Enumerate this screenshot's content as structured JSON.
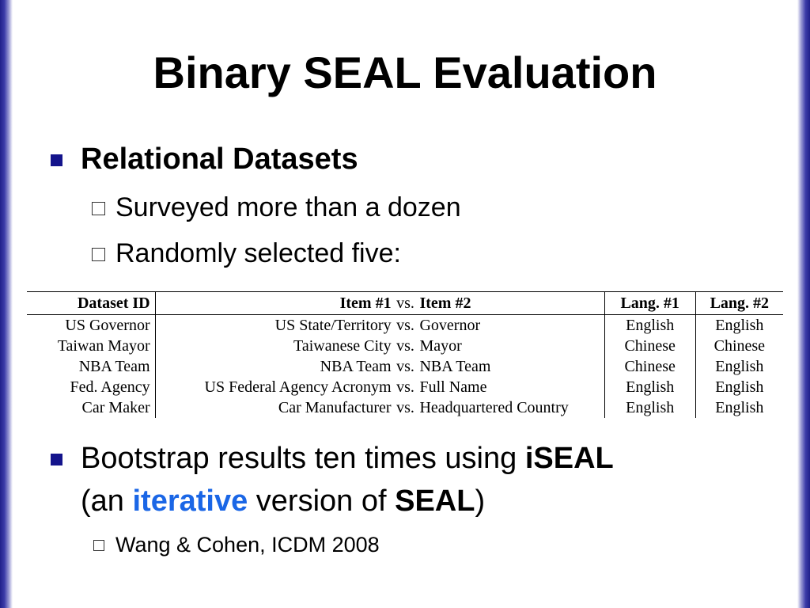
{
  "title": "Binary SEAL Evaluation",
  "bullets": {
    "relational": "Relational Datasets",
    "surveyed": "Surveyed more than a dozen",
    "randomly": "Randomly selected five:",
    "bootstrap": {
      "part1": "Bootstrap results ten times using ",
      "iseal": "iSEAL",
      "part2": "(an ",
      "iterative": "iterative",
      "part3": " version of ",
      "seal": "SEAL",
      "part4": ")"
    },
    "citation": "Wang & Cohen, ICDM 2008"
  },
  "table": {
    "headers": {
      "dataset_id": "Dataset ID",
      "item1": "Item #1",
      "vs": "vs.",
      "item2": "Item #2",
      "lang1": "Lang. #1",
      "lang2": "Lang. #2"
    },
    "rows": [
      {
        "id": "US Governor",
        "item1": "US State/Territory",
        "vs": "vs.",
        "item2": "Governor",
        "lang1": "English",
        "lang2": "English"
      },
      {
        "id": "Taiwan Mayor",
        "item1": "Taiwanese City",
        "vs": "vs.",
        "item2": "Mayor",
        "lang1": "Chinese",
        "lang2": "Chinese"
      },
      {
        "id": "NBA Team",
        "item1": "NBA Team",
        "vs": "vs.",
        "item2": "NBA Team",
        "lang1": "Chinese",
        "lang2": "English"
      },
      {
        "id": "Fed. Agency",
        "item1": "US Federal Agency Acronym",
        "vs": "vs.",
        "item2": "Full Name",
        "lang1": "English",
        "lang2": "English"
      },
      {
        "id": "Car Maker",
        "item1": "Car Manufacturer",
        "vs": "vs.",
        "item2": "Headquartered Country",
        "lang1": "English",
        "lang2": "English"
      }
    ]
  }
}
